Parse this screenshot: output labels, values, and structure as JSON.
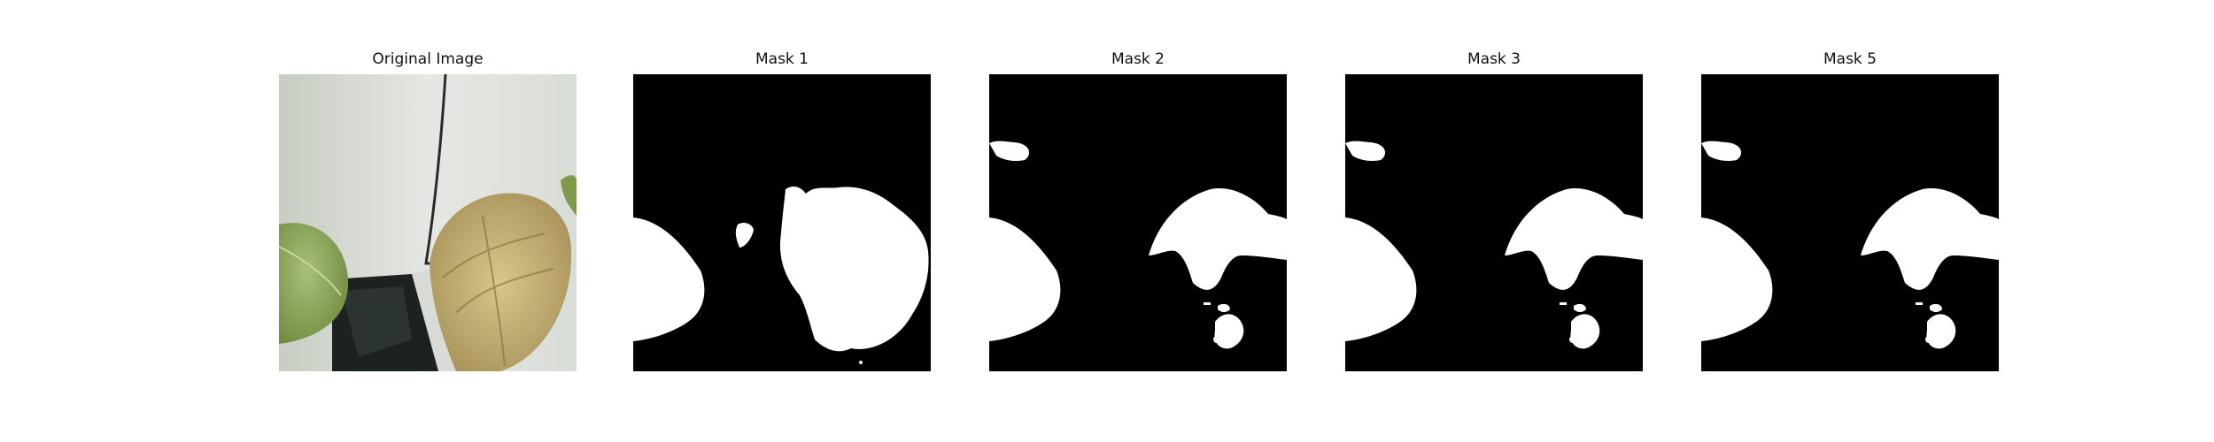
{
  "panels": [
    {
      "title": "Original Image"
    },
    {
      "title": "Mask 1"
    },
    {
      "title": "Mask 2"
    },
    {
      "title": "Mask 3"
    },
    {
      "title": "Mask 5"
    }
  ],
  "colors": {
    "mask_background": "#000000",
    "mask_foreground": "#ffffff",
    "leaf_green": "#8ea65c",
    "leaf_dry": "#c9b57a",
    "wall": "#dfe3de"
  }
}
